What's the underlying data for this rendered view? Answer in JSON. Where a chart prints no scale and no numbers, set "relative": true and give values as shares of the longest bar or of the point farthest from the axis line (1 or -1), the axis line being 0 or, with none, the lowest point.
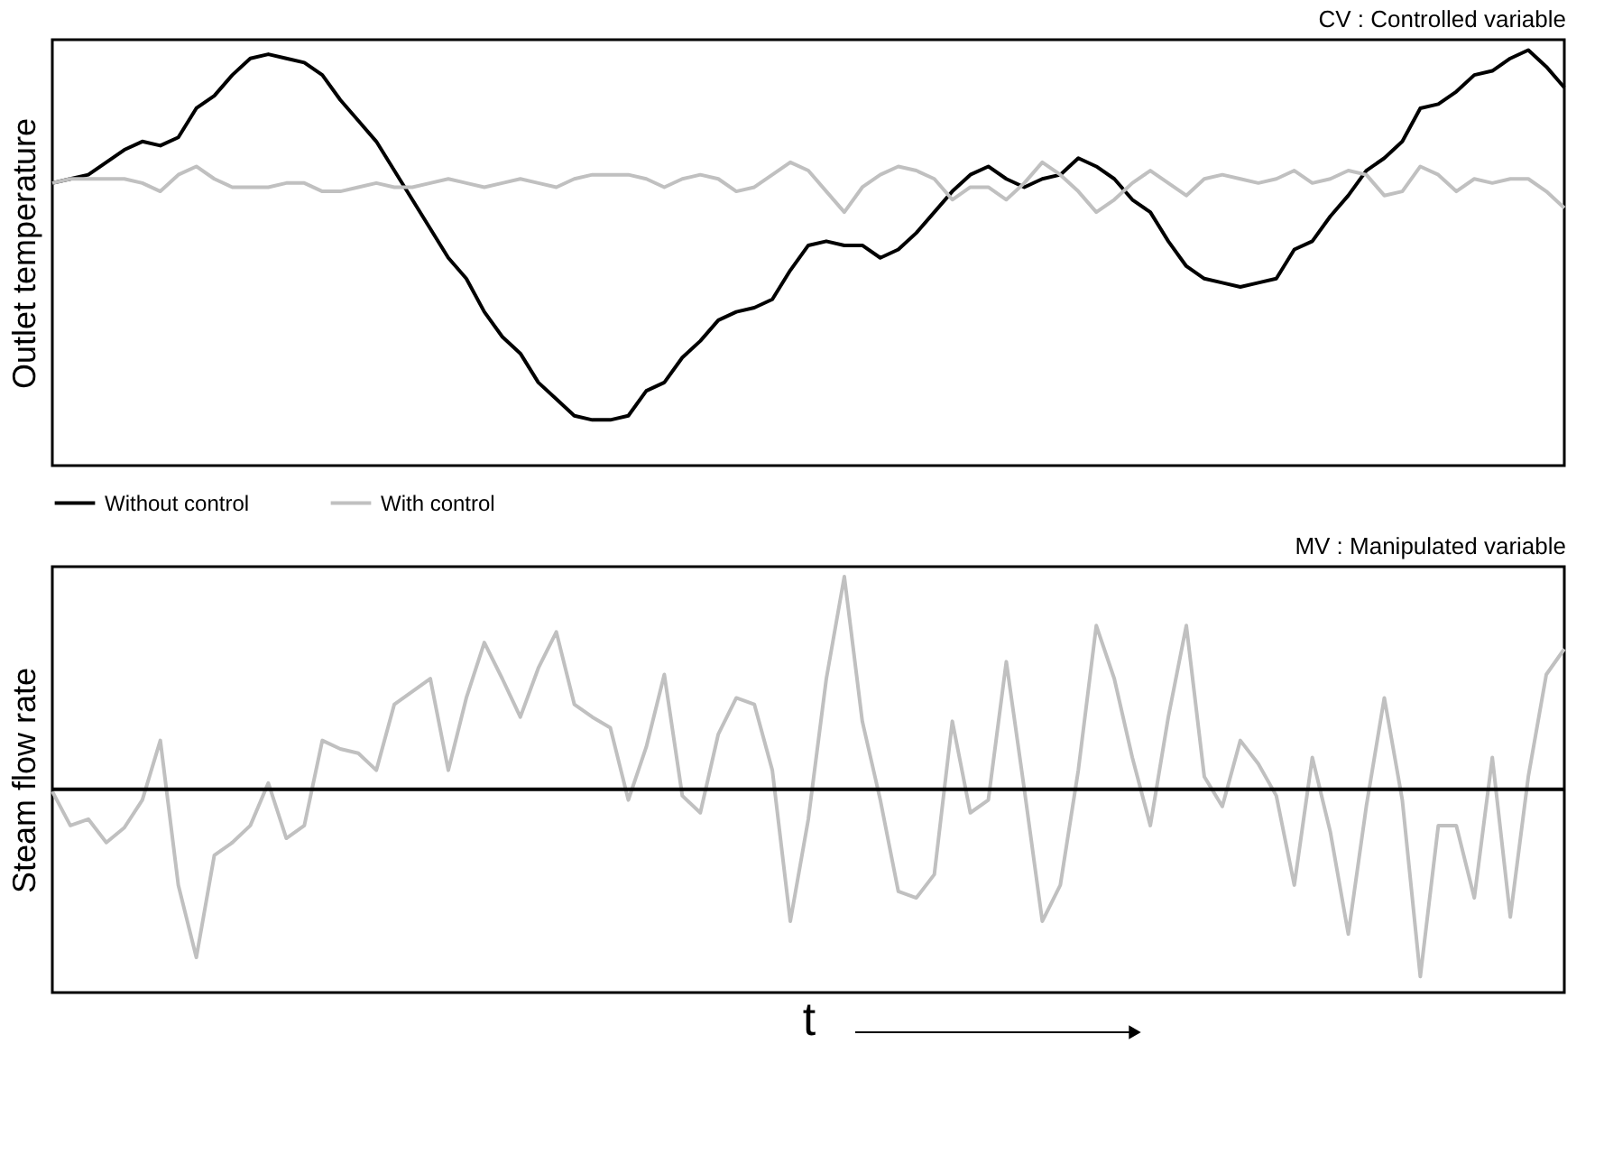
{
  "chart_data": [
    {
      "type": "line",
      "title": "CV : Controlled variable",
      "ylabel": "Outlet temperature",
      "relative": true,
      "legend": "bottom",
      "grid": false,
      "categories": [
        null,
        null,
        null,
        null,
        null,
        null,
        null,
        null,
        null,
        null,
        null,
        null,
        null,
        null,
        null,
        null,
        null,
        null,
        null,
        null,
        null,
        null,
        null,
        null,
        null,
        null,
        null,
        null,
        null,
        null,
        null,
        null,
        null,
        null,
        null,
        null,
        null,
        null,
        null,
        null,
        null,
        null,
        null,
        null,
        null,
        null,
        null,
        null,
        null,
        null,
        null,
        null,
        null,
        null,
        null,
        null,
        null,
        null,
        null,
        null,
        null,
        null,
        null,
        null,
        null,
        null,
        null,
        null,
        null,
        null,
        null,
        null,
        null,
        null,
        null,
        null,
        null,
        null,
        null,
        null,
        null,
        null,
        null,
        null,
        null
      ],
      "series": [
        {
          "name": "Without control",
          "color": "#000000",
          "values": [
            0.68,
            0.69,
            0.7,
            0.73,
            0.76,
            0.78,
            0.77,
            0.79,
            0.86,
            0.89,
            0.94,
            0.98,
            0.99,
            0.98,
            0.97,
            0.94,
            0.88,
            0.83,
            0.78,
            0.71,
            0.64,
            0.57,
            0.5,
            0.45,
            0.37,
            0.31,
            0.27,
            0.2,
            0.16,
            0.12,
            0.11,
            0.11,
            0.12,
            0.18,
            0.2,
            0.26,
            0.3,
            0.35,
            0.37,
            0.38,
            0.4,
            0.47,
            0.53,
            0.54,
            0.53,
            0.53,
            0.5,
            0.52,
            0.56,
            0.61,
            0.66,
            0.7,
            0.72,
            0.69,
            0.67,
            0.69,
            0.7,
            0.74,
            0.72,
            0.69,
            0.64,
            0.61,
            0.54,
            0.48,
            0.45,
            0.44,
            0.43,
            0.44,
            0.45,
            0.52,
            0.54,
            0.6,
            0.65,
            0.71,
            0.74,
            0.78,
            0.86,
            0.87,
            0.9,
            0.94,
            0.95,
            0.98,
            1.0,
            0.96,
            0.91
          ]
        },
        {
          "name": "With control",
          "color": "#c0c0c0",
          "values": [
            0.68,
            0.69,
            0.69,
            0.69,
            0.69,
            0.68,
            0.66,
            0.7,
            0.72,
            0.69,
            0.67,
            0.67,
            0.67,
            0.68,
            0.68,
            0.66,
            0.66,
            0.67,
            0.68,
            0.67,
            0.67,
            0.68,
            0.69,
            0.68,
            0.67,
            0.68,
            0.69,
            0.68,
            0.67,
            0.69,
            0.7,
            0.7,
            0.7,
            0.69,
            0.67,
            0.69,
            0.7,
            0.69,
            0.66,
            0.67,
            0.7,
            0.73,
            0.71,
            0.66,
            0.61,
            0.67,
            0.7,
            0.72,
            0.71,
            0.69,
            0.64,
            0.67,
            0.67,
            0.64,
            0.68,
            0.73,
            0.7,
            0.66,
            0.61,
            0.64,
            0.68,
            0.71,
            0.68,
            0.65,
            0.69,
            0.7,
            0.69,
            0.68,
            0.69,
            0.71,
            0.68,
            0.69,
            0.71,
            0.7,
            0.65,
            0.66,
            0.72,
            0.7,
            0.66,
            0.69,
            0.68,
            0.69,
            0.69,
            0.66,
            0.62
          ]
        }
      ]
    },
    {
      "type": "line",
      "title": "MV : Manipulated variable",
      "ylabel": "Steam flow rate",
      "xlabel": "t",
      "relative": true,
      "grid": false,
      "categories": [
        null,
        null,
        null,
        null,
        null,
        null,
        null,
        null,
        null,
        null,
        null,
        null,
        null,
        null,
        null,
        null,
        null,
        null,
        null,
        null,
        null,
        null,
        null,
        null,
        null,
        null,
        null,
        null,
        null,
        null,
        null,
        null,
        null,
        null,
        null,
        null,
        null,
        null,
        null,
        null,
        null,
        null,
        null,
        null,
        null,
        null,
        null,
        null,
        null,
        null,
        null,
        null,
        null,
        null,
        null,
        null,
        null,
        null,
        null,
        null,
        null,
        null,
        null,
        null,
        null,
        null,
        null,
        null,
        null,
        null,
        null,
        null,
        null,
        null,
        null,
        null,
        null,
        null,
        null,
        null,
        null,
        null,
        null,
        null,
        null
      ],
      "ref_lines": [
        {
          "axis": "y",
          "value": 0,
          "color": "#000000"
        }
      ],
      "series": [
        {
          "color": "#c0c0c0",
          "values": [
            -0.01,
            -0.17,
            -0.14,
            -0.25,
            -0.18,
            -0.05,
            0.23,
            -0.45,
            -0.79,
            -0.31,
            -0.25,
            -0.17,
            0.03,
            -0.23,
            -0.17,
            0.23,
            0.19,
            0.17,
            0.09,
            0.4,
            0.46,
            0.52,
            0.09,
            0.43,
            0.69,
            0.52,
            0.34,
            0.57,
            0.74,
            0.4,
            0.34,
            0.29,
            -0.05,
            0.2,
            0.54,
            -0.03,
            -0.11,
            0.26,
            0.43,
            0.4,
            0.09,
            -0.62,
            -0.14,
            0.52,
            1.0,
            0.32,
            -0.05,
            -0.48,
            -0.51,
            -0.4,
            0.32,
            -0.11,
            -0.05,
            0.6,
            0.0,
            -0.62,
            -0.45,
            0.09,
            0.77,
            0.52,
            0.15,
            -0.17,
            0.34,
            0.77,
            0.06,
            -0.08,
            0.23,
            0.12,
            -0.03,
            -0.45,
            0.15,
            -0.2,
            -0.68,
            -0.08,
            0.43,
            -0.05,
            -0.88,
            -0.17,
            -0.17,
            -0.51,
            0.15,
            -0.6,
            0.06,
            0.54,
            0.66
          ]
        }
      ]
    }
  ]
}
